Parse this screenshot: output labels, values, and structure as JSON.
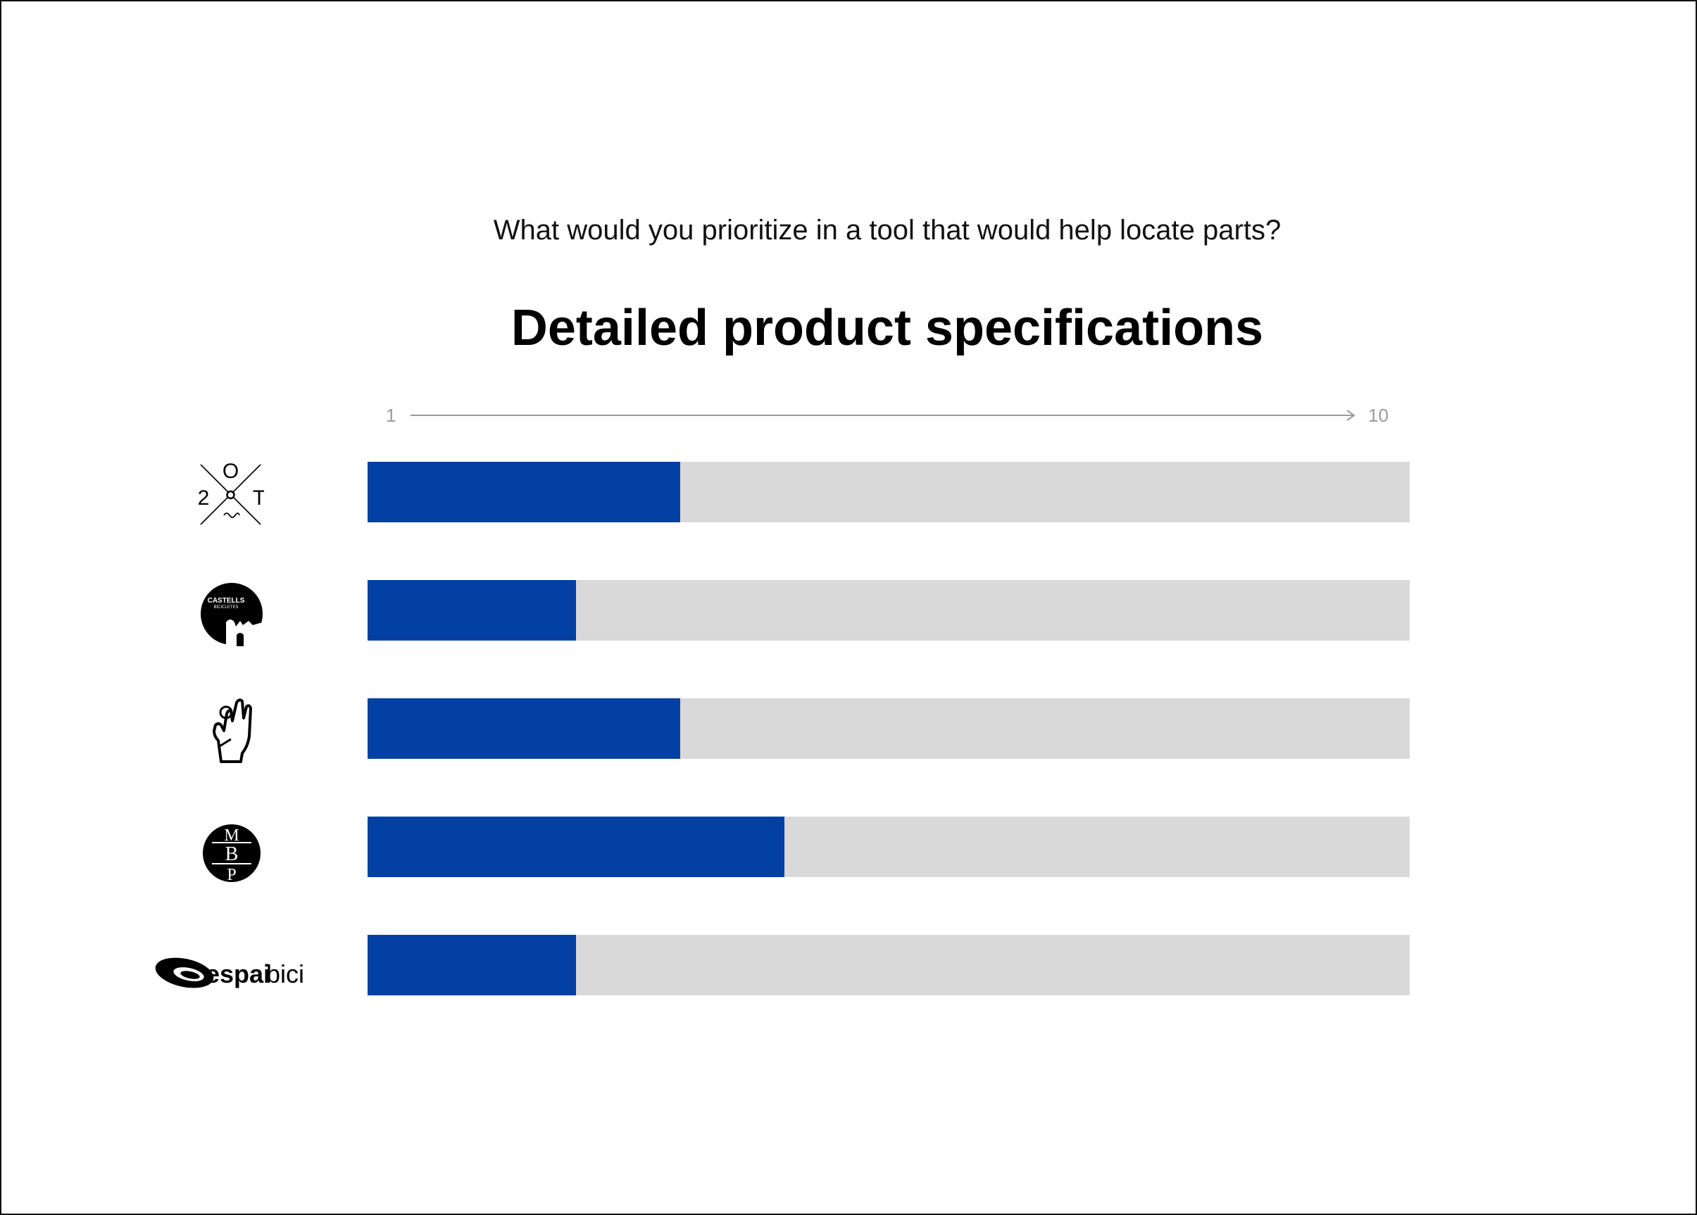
{
  "question": "What would you prioritize in a tool that would help locate parts?",
  "colors": {
    "bar": "#0340a4",
    "track": "#d9d9d9",
    "axis": "#9a9a9a"
  },
  "chart_data": {
    "type": "bar",
    "orientation": "horizontal",
    "title": "Detailed product specifications",
    "scale": {
      "min_label": "1",
      "max_label": "10"
    },
    "xlim": [
      0,
      10
    ],
    "grid": false,
    "categories": [
      "2OT",
      "Castells Bicicletes",
      "Hand logo",
      "MBP",
      "espaibici"
    ],
    "values": [
      3,
      2,
      3,
      4,
      2
    ]
  },
  "logos": [
    {
      "icon": "two-o-t-logo-icon",
      "letters": [
        "O",
        "2",
        "T"
      ]
    },
    {
      "icon": "castells-bicicletes-logo-icon",
      "letters": [
        "CASTELLS",
        "BICICLETES"
      ]
    },
    {
      "icon": "hand-logo-icon"
    },
    {
      "icon": "mbp-logo-icon",
      "letters": [
        "M",
        "B",
        "P"
      ]
    },
    {
      "icon": "espaibici-logo-icon",
      "letters": [
        "espai",
        "bici"
      ]
    }
  ]
}
